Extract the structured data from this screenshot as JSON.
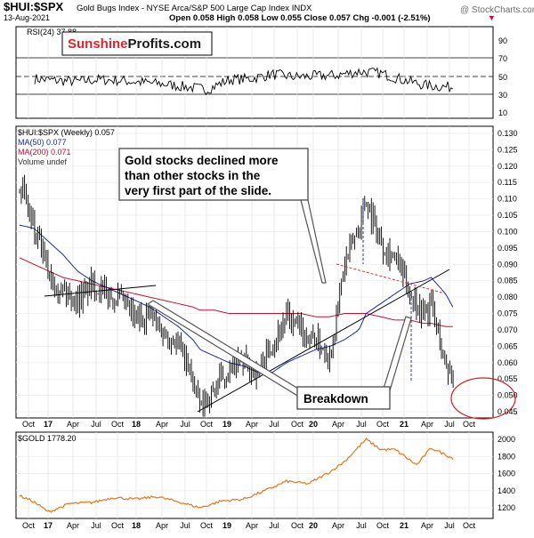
{
  "header": {
    "symbol": "$HUI:$SPX",
    "description": "Gold Bugs Index - NYSE Arca/S&P 500 Large Cap Index  INDX",
    "date": "13-Aug-2021",
    "ohlc": "Open 0.058  High 0.058  Low 0.055  Close 0.057  Chg -0.001 (-2.51%)",
    "arrow_glyph": "▼",
    "watermark": "@ StockCharts.com"
  },
  "logo": {
    "part1": "Sunshine",
    "part2": "Profits",
    "part3": ".com",
    "color_red": "#e0242b",
    "color_dark": "#1a1a1a"
  },
  "rsi_panel": {
    "legend": "RSI(24) 37.88",
    "levels": [
      "90",
      "70",
      "50",
      "30",
      "10"
    ]
  },
  "main_panel": {
    "legend": {
      "main": "$HUI:$SPX (Weekly) 0.057",
      "ma50": "MA(50) 0.077",
      "ma200": "MA(200) 0.071",
      "volume": "Volume undef"
    },
    "y_ticks": [
      "0.130",
      "0.125",
      "0.120",
      "0.115",
      "0.110",
      "0.105",
      "0.100",
      "0.095",
      "0.090",
      "0.085",
      "0.080",
      "0.075",
      "0.070",
      "0.065",
      "0.060",
      "0.055",
      "0.050",
      "0.045"
    ],
    "annotation_top": "Gold stocks declined more than other stocks in the very first part of the slide.",
    "annotation_top_lines": [
      "Gold stocks declined more",
      "than other stocks in the",
      "very first part of the slide."
    ],
    "annotation_bottom": "Breakdown",
    "colors": {
      "price": "#000000",
      "ma50": "#1f2a9e",
      "ma200": "#c8102e",
      "trend": "#000000",
      "dashed_blue": "#2233cc",
      "dashed_red": "#e23030",
      "circle": "#d02020"
    }
  },
  "gold_panel": {
    "legend": "$GOLD 1778.20",
    "y_ticks": [
      "2000",
      "1800",
      "1600",
      "1400",
      "1200"
    ],
    "color": "#e8731a"
  },
  "x_axis": [
    "Oct",
    "17",
    "Apr",
    "Jul",
    "Oct",
    "18",
    "Apr",
    "Jul",
    "Oct",
    "19",
    "Apr",
    "Jul",
    "Oct",
    "20",
    "Apr",
    "Jul",
    "Oct",
    "21",
    "Apr",
    "Jul",
    "Oct"
  ],
  "chart_data": [
    {
      "type": "line",
      "title": "$HUI:$SPX RSI(24)",
      "series": [
        {
          "name": "RSI(24) 37.88",
          "x": [
            "2016-10",
            "2017-01",
            "2017-04",
            "2017-07",
            "2017-10",
            "2018-01",
            "2018-04",
            "2018-07",
            "2018-10",
            "2019-01",
            "2019-04",
            "2019-07",
            "2019-10",
            "2020-01",
            "2020-04",
            "2020-07",
            "2020-10",
            "2021-01",
            "2021-04",
            "2021-07"
          ],
          "values": [
            47,
            45,
            44,
            46,
            45,
            43,
            41,
            38,
            35,
            46,
            47,
            52,
            49,
            50,
            51,
            55,
            53,
            46,
            40,
            37.88
          ]
        }
      ],
      "ylim": [
        0,
        100
      ]
    },
    {
      "type": "line",
      "title": "$HUI:$SPX (Weekly) 0.057",
      "x": [
        "2016-08",
        "2016-10",
        "2016-12",
        "2017-02",
        "2017-04",
        "2017-06",
        "2017-08",
        "2017-10",
        "2017-12",
        "2018-02",
        "2018-04",
        "2018-06",
        "2018-08",
        "2018-09",
        "2018-11",
        "2019-01",
        "2019-03",
        "2019-05",
        "2019-07",
        "2019-09",
        "2019-11",
        "2020-01",
        "2020-03",
        "2020-05",
        "2020-07",
        "2020-08",
        "2020-10",
        "2020-12",
        "2021-02",
        "2021-04",
        "2021-05",
        "2021-07",
        "2021-08"
      ],
      "series": [
        {
          "name": "$HUI:$SPX (Weekly) 0.057",
          "values": [
            0.116,
            0.1,
            0.088,
            0.082,
            0.079,
            0.084,
            0.081,
            0.079,
            0.073,
            0.075,
            0.069,
            0.066,
            0.055,
            0.046,
            0.052,
            0.058,
            0.06,
            0.057,
            0.066,
            0.074,
            0.069,
            0.067,
            0.062,
            0.09,
            0.102,
            0.11,
            0.097,
            0.092,
            0.082,
            0.075,
            0.078,
            0.059,
            0.057
          ]
        },
        {
          "name": "MA(50) 0.077",
          "values": [
            0.102,
            0.101,
            0.097,
            0.093,
            0.088,
            0.085,
            0.083,
            0.081,
            0.079,
            0.077,
            0.074,
            0.071,
            0.067,
            0.064,
            0.062,
            0.06,
            0.059,
            0.057,
            0.057,
            0.06,
            0.062,
            0.064,
            0.065,
            0.067,
            0.07,
            0.075,
            0.078,
            0.081,
            0.084,
            0.085,
            0.086,
            0.081,
            0.077
          ]
        },
        {
          "name": "MA(200) 0.071",
          "values": [
            0.092,
            0.09,
            0.088,
            0.086,
            0.085,
            0.084,
            0.083,
            0.082,
            0.081,
            0.08,
            0.079,
            0.078,
            0.077,
            0.076,
            0.076,
            0.075,
            0.075,
            0.075,
            0.075,
            0.075,
            0.075,
            0.074,
            0.074,
            0.075,
            0.075,
            0.075,
            0.074,
            0.073,
            0.073,
            0.072,
            0.072,
            0.071,
            0.071
          ]
        }
      ],
      "ylim": [
        0.044,
        0.131
      ]
    },
    {
      "type": "line",
      "title": "$GOLD 1778.20",
      "x": [
        "2016-08",
        "2016-10",
        "2016-12",
        "2017-03",
        "2017-06",
        "2017-09",
        "2017-12",
        "2018-03",
        "2018-06",
        "2018-09",
        "2018-12",
        "2019-03",
        "2019-06",
        "2019-09",
        "2019-12",
        "2020-03",
        "2020-05",
        "2020-08",
        "2020-10",
        "2020-12",
        "2021-03",
        "2021-05",
        "2021-08"
      ],
      "series": [
        {
          "name": "$GOLD 1778.20",
          "values": [
            1340,
            1270,
            1150,
            1250,
            1260,
            1320,
            1300,
            1330,
            1270,
            1200,
            1280,
            1300,
            1400,
            1510,
            1480,
            1620,
            1740,
            2000,
            1880,
            1880,
            1700,
            1900,
            1778.2
          ]
        }
      ],
      "ylim": [
        1150,
        2080
      ]
    }
  ]
}
